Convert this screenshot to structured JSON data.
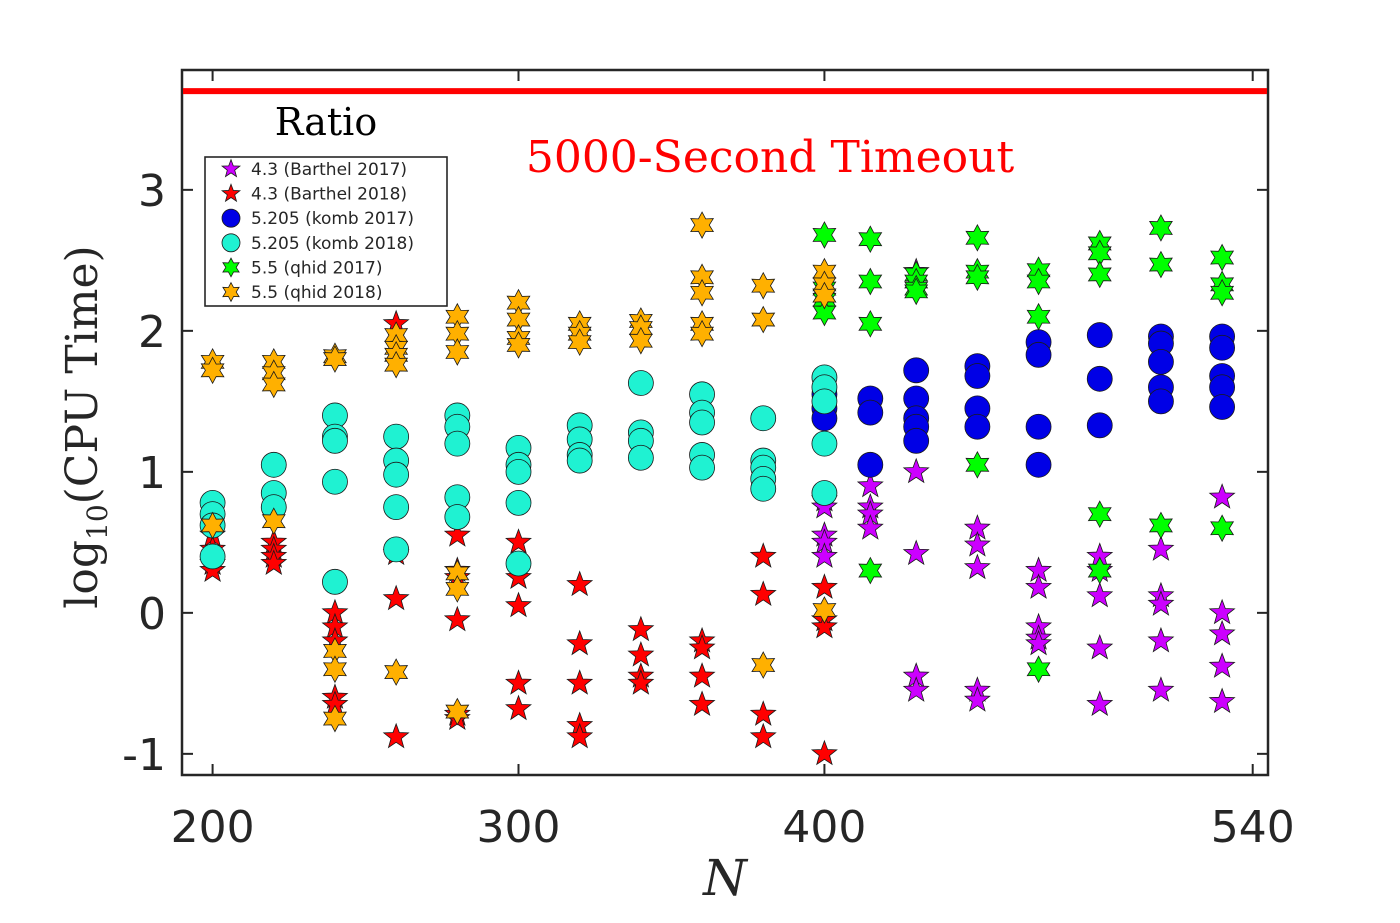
{
  "chart_data": {
    "type": "scatter",
    "xlabel": "N",
    "ylabel_prefix": "log",
    "ylabel_subscript": "10",
    "ylabel_main": "(CPU Time)",
    "xlim": [
      190,
      545
    ],
    "ylim": [
      -1.15,
      3.85
    ],
    "x_ticks": [
      200,
      300,
      400,
      540
    ],
    "x_tick_labels": [
      "200",
      "300",
      "400",
      "540"
    ],
    "y_ticks": [
      -1,
      0,
      1,
      2,
      3
    ],
    "y_tick_labels": [
      "-1",
      "0",
      "1",
      "2",
      "3"
    ],
    "legend_title": "Ratio",
    "timeout_label": "5000-Second Timeout",
    "timeout_value": 3.7,
    "series": [
      {
        "name": "4.3 (Barthel 2017)",
        "marker": "star5",
        "color": "#cc00ff",
        "points": [
          [
            400,
            0.8
          ],
          [
            400,
            0.75
          ],
          [
            400,
            0.55
          ],
          [
            400,
            0.5
          ],
          [
            400,
            0.4
          ],
          [
            415,
            0.9
          ],
          [
            415,
            0.75
          ],
          [
            415,
            0.7
          ],
          [
            415,
            0.6
          ],
          [
            430,
            2.42
          ],
          [
            430,
            1.0
          ],
          [
            430,
            0.42
          ],
          [
            430,
            -0.45
          ],
          [
            430,
            -0.55
          ],
          [
            450,
            0.6
          ],
          [
            450,
            0.48
          ],
          [
            450,
            0.32
          ],
          [
            450,
            -0.55
          ],
          [
            450,
            -0.62
          ],
          [
            470,
            0.3
          ],
          [
            470,
            0.18
          ],
          [
            470,
            -0.1
          ],
          [
            470,
            -0.18
          ],
          [
            470,
            -0.22
          ],
          [
            490,
            0.4
          ],
          [
            490,
            0.3
          ],
          [
            490,
            0.12
          ],
          [
            490,
            -0.25
          ],
          [
            490,
            -0.65
          ],
          [
            510,
            0.45
          ],
          [
            510,
            0.12
          ],
          [
            510,
            0.06
          ],
          [
            510,
            -0.2
          ],
          [
            510,
            -0.55
          ],
          [
            530,
            0.82
          ],
          [
            530,
            0.0
          ],
          [
            530,
            -0.15
          ],
          [
            530,
            -0.38
          ],
          [
            530,
            -0.63
          ]
        ]
      },
      {
        "name": "4.3 (Barthel 2018)",
        "marker": "star5",
        "color": "#ff0000",
        "points": [
          [
            200,
            0.55
          ],
          [
            200,
            0.45
          ],
          [
            200,
            0.35
          ],
          [
            200,
            0.3
          ],
          [
            220,
            0.5
          ],
          [
            220,
            0.45
          ],
          [
            220,
            0.4
          ],
          [
            220,
            0.35
          ],
          [
            240,
            0.0
          ],
          [
            240,
            -0.1
          ],
          [
            240,
            -0.2
          ],
          [
            240,
            -0.6
          ],
          [
            240,
            -0.65
          ],
          [
            260,
            2.05
          ],
          [
            260,
            0.42
          ],
          [
            260,
            0.1
          ],
          [
            260,
            -0.88
          ],
          [
            280,
            0.55
          ],
          [
            280,
            0.3
          ],
          [
            280,
            0.25
          ],
          [
            280,
            -0.05
          ],
          [
            280,
            -0.72
          ],
          [
            280,
            -0.75
          ],
          [
            300,
            0.5
          ],
          [
            300,
            0.25
          ],
          [
            300,
            0.05
          ],
          [
            300,
            -0.5
          ],
          [
            300,
            -0.68
          ],
          [
            320,
            0.2
          ],
          [
            320,
            -0.22
          ],
          [
            320,
            -0.5
          ],
          [
            320,
            -0.8
          ],
          [
            320,
            -0.88
          ],
          [
            340,
            -0.12
          ],
          [
            340,
            -0.3
          ],
          [
            340,
            -0.45
          ],
          [
            340,
            -0.5
          ],
          [
            360,
            -0.2
          ],
          [
            360,
            -0.25
          ],
          [
            360,
            -0.45
          ],
          [
            360,
            -0.65
          ],
          [
            380,
            0.4
          ],
          [
            380,
            0.13
          ],
          [
            380,
            -0.72
          ],
          [
            380,
            -0.88
          ],
          [
            400,
            0.18
          ],
          [
            400,
            -0.05
          ],
          [
            400,
            -0.1
          ],
          [
            400,
            -1.0
          ]
        ]
      },
      {
        "name": "5.205 (komb 2017)",
        "marker": "circle",
        "color": "#0000e6",
        "points": [
          [
            400,
            1.55
          ],
          [
            400,
            1.45
          ],
          [
            400,
            1.38
          ],
          [
            415,
            1.52
          ],
          [
            415,
            1.42
          ],
          [
            415,
            1.05
          ],
          [
            430,
            1.72
          ],
          [
            430,
            1.52
          ],
          [
            430,
            1.38
          ],
          [
            430,
            1.32
          ],
          [
            430,
            1.22
          ],
          [
            450,
            1.75
          ],
          [
            450,
            1.68
          ],
          [
            450,
            1.45
          ],
          [
            450,
            1.32
          ],
          [
            470,
            1.92
          ],
          [
            470,
            1.83
          ],
          [
            470,
            1.32
          ],
          [
            470,
            1.05
          ],
          [
            490,
            1.97
          ],
          [
            490,
            1.66
          ],
          [
            490,
            1.33
          ],
          [
            510,
            1.96
          ],
          [
            510,
            1.91
          ],
          [
            510,
            1.78
          ],
          [
            510,
            1.6
          ],
          [
            510,
            1.5
          ],
          [
            530,
            1.96
          ],
          [
            530,
            1.88
          ],
          [
            530,
            1.68
          ],
          [
            530,
            1.6
          ],
          [
            530,
            1.46
          ]
        ]
      },
      {
        "name": "5.205 (komb 2018)",
        "marker": "circle",
        "color": "#1ff2d2",
        "points": [
          [
            200,
            0.78
          ],
          [
            200,
            0.7
          ],
          [
            200,
            0.62
          ],
          [
            200,
            0.4
          ],
          [
            220,
            1.05
          ],
          [
            220,
            0.85
          ],
          [
            220,
            0.75
          ],
          [
            240,
            1.4
          ],
          [
            240,
            1.25
          ],
          [
            240,
            1.22
          ],
          [
            240,
            0.93
          ],
          [
            240,
            0.22
          ],
          [
            260,
            1.25
          ],
          [
            260,
            1.08
          ],
          [
            260,
            0.98
          ],
          [
            260,
            0.75
          ],
          [
            260,
            0.45
          ],
          [
            280,
            1.4
          ],
          [
            280,
            1.32
          ],
          [
            280,
            1.2
          ],
          [
            280,
            0.82
          ],
          [
            280,
            0.68
          ],
          [
            300,
            1.17
          ],
          [
            300,
            1.05
          ],
          [
            300,
            1.0
          ],
          [
            300,
            0.78
          ],
          [
            300,
            0.35
          ],
          [
            320,
            1.33
          ],
          [
            320,
            1.23
          ],
          [
            320,
            1.12
          ],
          [
            320,
            1.08
          ],
          [
            340,
            1.63
          ],
          [
            340,
            1.28
          ],
          [
            340,
            1.22
          ],
          [
            340,
            1.1
          ],
          [
            360,
            1.55
          ],
          [
            360,
            1.42
          ],
          [
            360,
            1.35
          ],
          [
            360,
            1.12
          ],
          [
            360,
            1.03
          ],
          [
            380,
            1.38
          ],
          [
            380,
            1.08
          ],
          [
            380,
            1.03
          ],
          [
            380,
            0.95
          ],
          [
            380,
            0.88
          ],
          [
            400,
            1.67
          ],
          [
            400,
            1.6
          ],
          [
            400,
            1.5
          ],
          [
            400,
            1.2
          ],
          [
            400,
            0.85
          ]
        ]
      },
      {
        "name": "5.5 (qhid 2017)",
        "marker": "star6",
        "color": "#00ff00",
        "points": [
          [
            400,
            2.68
          ],
          [
            400,
            2.3
          ],
          [
            400,
            2.25
          ],
          [
            400,
            2.22
          ],
          [
            400,
            2.13
          ],
          [
            415,
            2.65
          ],
          [
            415,
            2.35
          ],
          [
            415,
            2.05
          ],
          [
            415,
            0.3
          ],
          [
            430,
            2.4
          ],
          [
            430,
            2.35
          ],
          [
            430,
            2.3
          ],
          [
            430,
            2.28
          ],
          [
            450,
            2.66
          ],
          [
            450,
            2.42
          ],
          [
            450,
            2.38
          ],
          [
            450,
            1.05
          ],
          [
            470,
            2.43
          ],
          [
            470,
            2.35
          ],
          [
            470,
            2.1
          ],
          [
            470,
            -0.4
          ],
          [
            490,
            2.62
          ],
          [
            490,
            2.55
          ],
          [
            490,
            2.4
          ],
          [
            490,
            0.7
          ],
          [
            490,
            0.3
          ],
          [
            510,
            2.73
          ],
          [
            510,
            2.47
          ],
          [
            510,
            0.62
          ],
          [
            530,
            2.52
          ],
          [
            530,
            2.33
          ],
          [
            530,
            2.27
          ],
          [
            530,
            0.6
          ]
        ]
      },
      {
        "name": "5.5 (qhid 2018)",
        "marker": "star6",
        "color": "#ffb000",
        "points": [
          [
            200,
            1.78
          ],
          [
            200,
            1.72
          ],
          [
            200,
            0.62
          ],
          [
            220,
            1.78
          ],
          [
            220,
            1.7
          ],
          [
            220,
            1.62
          ],
          [
            220,
            0.65
          ],
          [
            240,
            1.82
          ],
          [
            240,
            1.8
          ],
          [
            240,
            -0.27
          ],
          [
            240,
            -0.4
          ],
          [
            240,
            -0.75
          ],
          [
            260,
            1.97
          ],
          [
            260,
            1.88
          ],
          [
            260,
            1.83
          ],
          [
            260,
            1.76
          ],
          [
            260,
            -0.42
          ],
          [
            280,
            2.1
          ],
          [
            280,
            1.98
          ],
          [
            280,
            1.85
          ],
          [
            280,
            0.28
          ],
          [
            280,
            0.17
          ],
          [
            280,
            -0.7
          ],
          [
            300,
            2.2
          ],
          [
            300,
            2.08
          ],
          [
            300,
            1.95
          ],
          [
            300,
            1.9
          ],
          [
            320,
            2.05
          ],
          [
            320,
            1.98
          ],
          [
            320,
            1.92
          ],
          [
            340,
            2.07
          ],
          [
            340,
            2.02
          ],
          [
            340,
            1.93
          ],
          [
            360,
            2.75
          ],
          [
            360,
            2.38
          ],
          [
            360,
            2.27
          ],
          [
            360,
            2.05
          ],
          [
            360,
            1.98
          ],
          [
            380,
            2.32
          ],
          [
            380,
            2.08
          ],
          [
            380,
            -0.37
          ],
          [
            400,
            2.42
          ],
          [
            400,
            2.33
          ],
          [
            400,
            2.25
          ],
          [
            400,
            0.02
          ]
        ]
      }
    ]
  }
}
